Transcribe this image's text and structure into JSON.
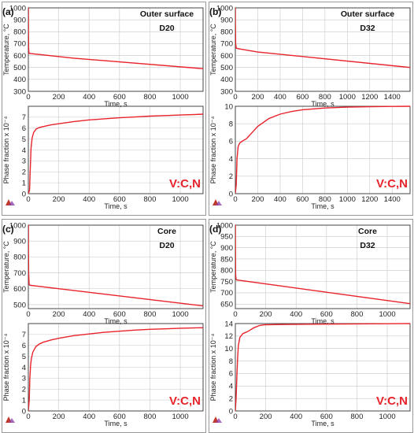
{
  "colors": {
    "curve": "#e8232b",
    "grid": "#c8c8c8",
    "frame": "#333333",
    "panel_border": "#999999"
  },
  "chart_data": [
    {
      "type": "line",
      "panel_label": "(a)",
      "title": "Outer surface",
      "subtitle": "D20",
      "species": "V:C,N",
      "temp": {
        "ylabel": "Temperature, °C",
        "xlabel": "Time, s",
        "xlim": [
          0,
          1150
        ],
        "ylim": [
          300,
          1000
        ],
        "xticks": [
          0,
          200,
          400,
          600,
          800,
          1000
        ],
        "yticks": [
          300,
          400,
          500,
          600,
          700,
          800,
          900,
          1000
        ],
        "series": [
          {
            "x": [
              0,
              0.5,
              1,
              2,
              4,
              6,
              300,
              1150
            ],
            "y": [
              1000,
              1000,
              800,
              660,
              625,
              618,
              578,
              490
            ]
          }
        ]
      },
      "phase": {
        "ylabel": "Phase fraction x 10⁻⁴",
        "xlabel": "Time, s",
        "xlim": [
          0,
          1150
        ],
        "ylim": [
          0,
          8
        ],
        "xticks": [
          0,
          200,
          400,
          600,
          800,
          1000
        ],
        "yticks": [
          0,
          1,
          2,
          3,
          4,
          5,
          6,
          7
        ],
        "series": [
          {
            "x": [
              0,
              8,
              12,
              18,
              25,
              35,
              50,
              70,
              100,
              150,
              200,
              300,
              400,
              500,
              600,
              700,
              800,
              900,
              1000,
              1100,
              1150
            ],
            "y": [
              0,
              0.3,
              2.0,
              4.2,
              5.1,
              5.6,
              5.9,
              6.05,
              6.15,
              6.3,
              6.4,
              6.6,
              6.75,
              6.85,
              6.95,
              7.02,
              7.1,
              7.15,
              7.2,
              7.25,
              7.28
            ]
          }
        ]
      }
    },
    {
      "type": "line",
      "panel_label": "(b)",
      "title": "Outer surface",
      "subtitle": "D32",
      "species": "V:C,N",
      "temp": {
        "ylabel": "Temperature, °C",
        "xlabel": "Time, s",
        "xlim": [
          0,
          1560
        ],
        "ylim": [
          300,
          1000
        ],
        "xticks": [
          0,
          200,
          400,
          600,
          800,
          1000,
          1200,
          1400
        ],
        "yticks": [
          300,
          400,
          500,
          600,
          700,
          800,
          900,
          1000
        ],
        "series": [
          {
            "x": [
              0,
              0.5,
              1,
              3,
              8,
              15,
              40,
              200,
              1560
            ],
            "y": [
              1000,
              1000,
              850,
              700,
              662,
              660,
              655,
              630,
              500
            ]
          }
        ]
      },
      "phase": {
        "ylabel": "Phase fraction x 10⁻⁴",
        "xlabel": "Time, s",
        "xlim": [
          0,
          1560
        ],
        "ylim": [
          0,
          10
        ],
        "xticks": [
          0,
          200,
          400,
          600,
          800,
          1000,
          1200,
          1400
        ],
        "yticks": [
          0,
          2,
          4,
          6,
          8,
          10
        ],
        "series": [
          {
            "x": [
              0,
              8,
              15,
              25,
              40,
              60,
              100,
              150,
              200,
              300,
              400,
              500,
              600,
              800,
              1000,
              1200,
              1400,
              1560
            ],
            "y": [
              0,
              1.0,
              4.0,
              5.4,
              5.8,
              6.0,
              6.3,
              7.0,
              7.7,
              8.6,
              9.1,
              9.4,
              9.6,
              9.8,
              9.9,
              9.95,
              9.98,
              10.0
            ]
          }
        ]
      }
    },
    {
      "type": "line",
      "panel_label": "(c)",
      "title": "Core",
      "subtitle": "D20",
      "species": "V:C,N",
      "temp": {
        "ylabel": "Temperature, °C",
        "xlabel": "Time, s",
        "xlim": [
          0,
          1150
        ],
        "ylim": [
          475,
          1000
        ],
        "xticks": [
          0,
          200,
          400,
          600,
          800,
          1000
        ],
        "yticks": [
          500,
          600,
          700,
          800,
          900,
          1000
        ],
        "series": [
          {
            "x": [
              0,
              0.5,
              1,
              2,
              5,
              10,
              1150
            ],
            "y": [
              1000,
              1000,
              850,
              700,
              630,
              622,
              492
            ]
          }
        ]
      },
      "phase": {
        "ylabel": "Phase fraction x 10⁻⁴",
        "xlabel": "Time, s",
        "xlim": [
          0,
          1150
        ],
        "ylim": [
          0,
          8
        ],
        "xticks": [
          0,
          200,
          400,
          600,
          800,
          1000
        ],
        "yticks": [
          0,
          1,
          2,
          3,
          4,
          5,
          6,
          7
        ],
        "series": [
          {
            "x": [
              0,
              6,
              10,
              15,
              20,
              30,
              50,
              75,
              100,
              150,
              200,
              300,
              400,
              500,
              600,
              700,
              800,
              900,
              1000,
              1150
            ],
            "y": [
              0,
              1.0,
              3.0,
              4.2,
              4.8,
              5.4,
              5.9,
              6.15,
              6.3,
              6.5,
              6.65,
              6.9,
              7.05,
              7.2,
              7.3,
              7.4,
              7.47,
              7.52,
              7.57,
              7.62
            ]
          }
        ]
      }
    },
    {
      "type": "line",
      "panel_label": "(d)",
      "title": "Core",
      "subtitle": "D32",
      "species": "V:C,N",
      "temp": {
        "ylabel": "Temperature, °C",
        "xlabel": "Time, s",
        "xlim": [
          0,
          1150
        ],
        "ylim": [
          630,
          1000
        ],
        "xticks": [
          0,
          200,
          400,
          600,
          800,
          1000
        ],
        "yticks": [
          650,
          700,
          750,
          800,
          850,
          900,
          950,
          1000
        ],
        "series": [
          {
            "x": [
              0,
              0.5,
              1,
              2,
              5,
              10,
              1150
            ],
            "y": [
              1000,
              1000,
              880,
              780,
              760,
              757,
              652
            ]
          }
        ]
      },
      "phase": {
        "ylabel": "Phase fraction x 10⁻⁴",
        "xlabel": "Time, s",
        "xlim": [
          0,
          1150
        ],
        "ylim": [
          0,
          14
        ],
        "xticks": [
          0,
          200,
          400,
          600,
          800,
          1000
        ],
        "yticks": [
          0,
          2,
          4,
          6,
          8,
          10,
          12,
          14
        ],
        "series": [
          {
            "x": [
              0,
              5,
              10,
              15,
              20,
              30,
              50,
              80,
              120,
              160,
              190,
              300,
              500,
              800,
              1150
            ],
            "y": [
              0,
              2.0,
              5.5,
              8.5,
              10.5,
              11.8,
              12.4,
              12.7,
              13.3,
              13.7,
              13.8,
              13.85,
              13.9,
              13.95,
              14.0
            ]
          }
        ]
      }
    }
  ]
}
